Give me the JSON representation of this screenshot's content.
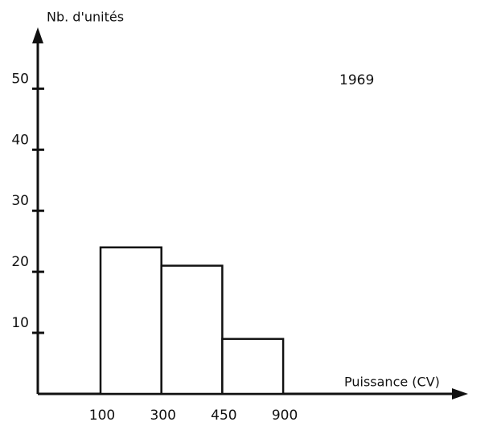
{
  "chart_data": {
    "type": "histogram",
    "title": "1969",
    "ylabel": "Nb. d'unités",
    "xlabel": "Puissance (CV)",
    "bins": [
      100,
      300,
      450,
      900
    ],
    "values": [
      24,
      21,
      9
    ],
    "color": "#ffffff",
    "ylim": [
      0,
      59
    ],
    "yticks": [
      10,
      20,
      30,
      40,
      50
    ]
  }
}
